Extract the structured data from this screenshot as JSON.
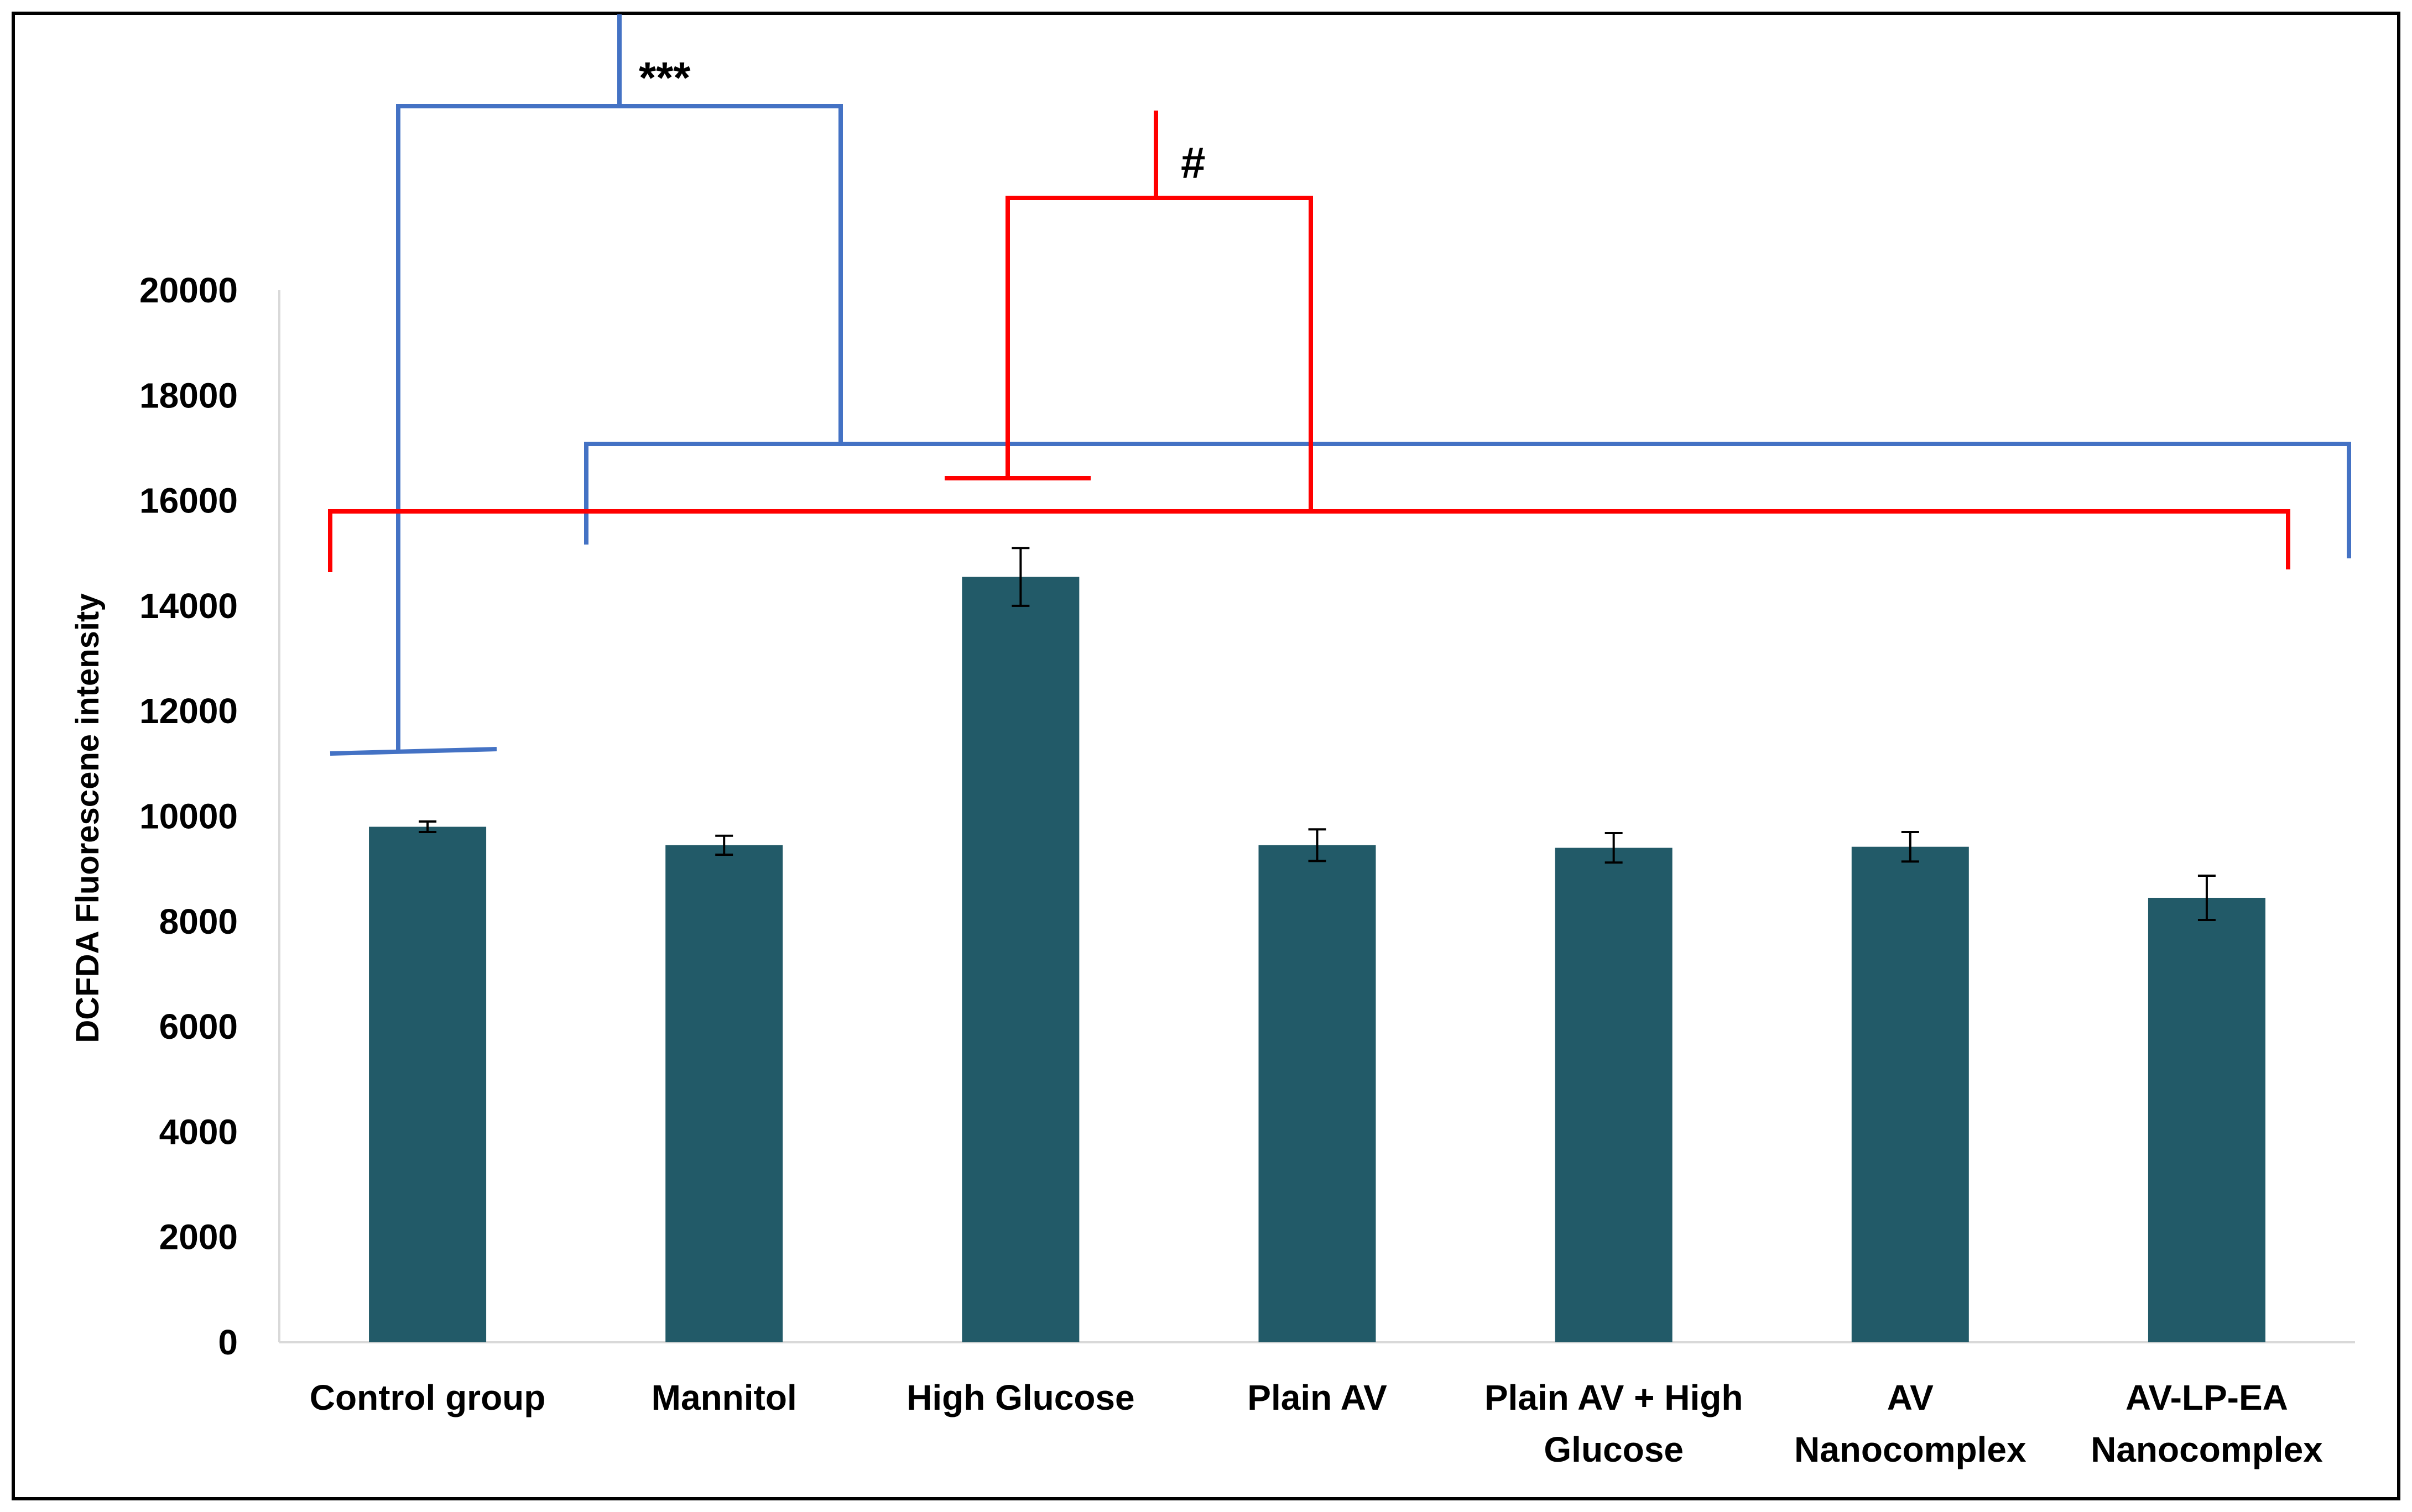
{
  "chart_data": {
    "type": "bar",
    "title": "",
    "xlabel": "",
    "ylabel": "DCFDA Fluorescene intensity",
    "ylim": [
      0,
      20000
    ],
    "yticks": [
      0,
      2000,
      4000,
      6000,
      8000,
      10000,
      12000,
      14000,
      16000,
      18000,
      20000
    ],
    "grid": false,
    "bar_color": "#225a68",
    "categories": [
      [
        "Control group"
      ],
      [
        "Mannitol"
      ],
      [
        "High Glucose"
      ],
      [
        "Plain AV"
      ],
      [
        "Plain AV + High",
        "Glucose"
      ],
      [
        "AV",
        "Nanocomplex"
      ],
      [
        "AV-LP-EA",
        "Nanocomplex"
      ]
    ],
    "values": [
      9800,
      9450,
      14550,
      9450,
      9400,
      9420,
      8450
    ],
    "errors": [
      100,
      180,
      550,
      300,
      280,
      280,
      420
    ],
    "significance": [
      {
        "label": "***",
        "color": "#4472c4",
        "comparison": "Control group vs all other groups"
      },
      {
        "label": "#",
        "color": "#ff0000",
        "comparison": "High Glucose vs all other groups"
      }
    ]
  }
}
